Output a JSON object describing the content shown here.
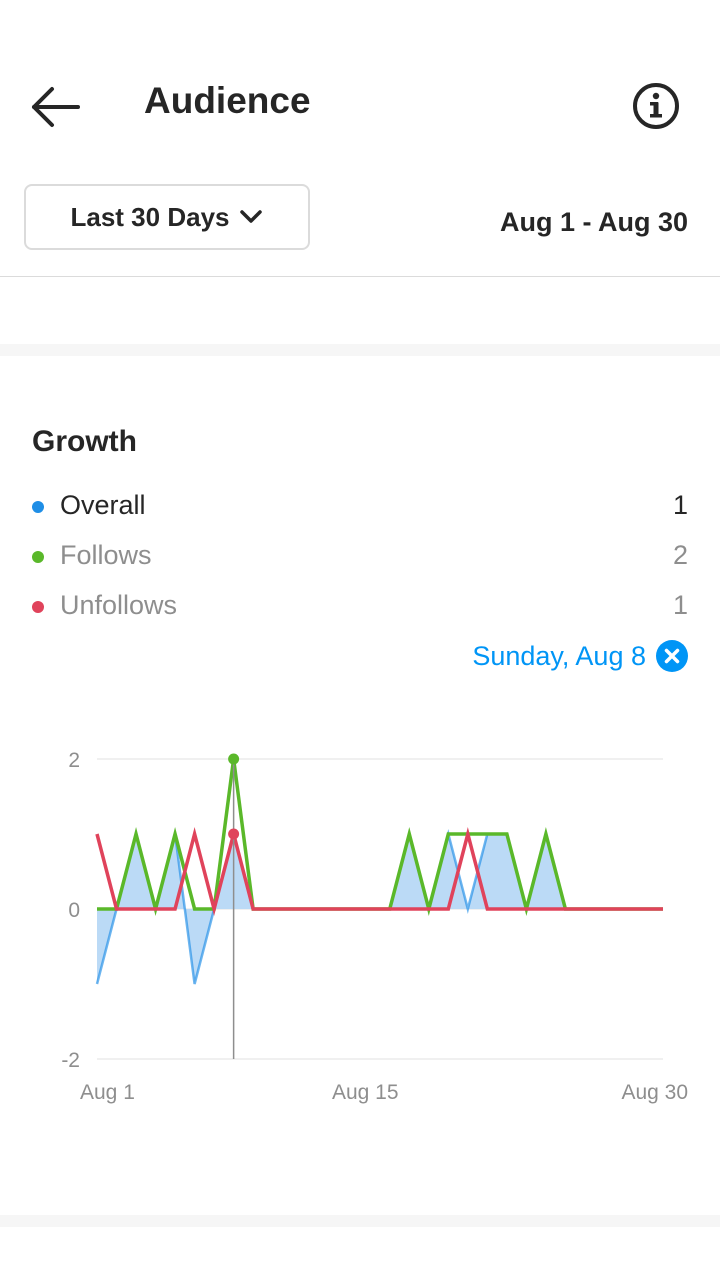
{
  "header": {
    "title": "Audience",
    "back_icon": "back-arrow-icon",
    "info_icon": "info-icon"
  },
  "filter": {
    "range_label": "Last 30 Days",
    "dropdown_icon": "chevron-down-icon",
    "date_range": "Aug 1 - Aug 30"
  },
  "growth": {
    "title": "Growth",
    "legend": [
      {
        "label": "Overall",
        "value": "1",
        "color": "#1f8ee6"
      },
      {
        "label": "Follows",
        "value": "2",
        "color": "#5ab82a"
      },
      {
        "label": "Unfollows",
        "value": "1",
        "color": "#e0435b"
      }
    ],
    "selected_day": "Sunday, Aug 8",
    "close_icon": "close-circle-icon"
  },
  "colors": {
    "accent": "#0095f6",
    "overall": "#1f8ee6",
    "overall_fill": "#b7d8f5",
    "follows": "#5ab82a",
    "unfollows": "#e0435b",
    "grid": "#e0e0e0",
    "muted_text": "#8e8e8e"
  },
  "chart_data": {
    "type": "line",
    "x": [
      1,
      2,
      3,
      4,
      5,
      6,
      7,
      8,
      9,
      10,
      11,
      12,
      13,
      14,
      15,
      16,
      17,
      18,
      19,
      20,
      21,
      22,
      23,
      24,
      25,
      26,
      27,
      28,
      29,
      30
    ],
    "xticks": [
      {
        "x": 1,
        "label": "Aug 1"
      },
      {
        "x": 15,
        "label": "Aug 15"
      },
      {
        "x": 30,
        "label": "Aug 30"
      }
    ],
    "yticks": [
      {
        "y": 2,
        "label": "2"
      },
      {
        "y": 0,
        "label": "0"
      },
      {
        "y": -2,
        "label": "-2"
      }
    ],
    "ylim": [
      -2,
      2
    ],
    "grid": true,
    "selected_x": 8,
    "series": [
      {
        "name": "Overall",
        "values": [
          -1,
          0,
          1,
          0,
          1,
          -1,
          0,
          1,
          0,
          0,
          0,
          0,
          0,
          0,
          0,
          0,
          1,
          0,
          1,
          0,
          1,
          1,
          0,
          1,
          0,
          0,
          0,
          0,
          0,
          0
        ]
      },
      {
        "name": "Follows",
        "values": [
          0,
          0,
          1,
          0,
          1,
          0,
          0,
          2,
          0,
          0,
          0,
          0,
          0,
          0,
          0,
          0,
          1,
          0,
          1,
          1,
          1,
          1,
          0,
          1,
          0,
          0,
          0,
          0,
          0,
          0
        ]
      },
      {
        "name": "Unfollows",
        "values": [
          1,
          0,
          0,
          0,
          0,
          1,
          0,
          1,
          0,
          0,
          0,
          0,
          0,
          0,
          0,
          0,
          0,
          0,
          0,
          1,
          0,
          0,
          0,
          0,
          0,
          0,
          0,
          0,
          0,
          0
        ]
      }
    ]
  }
}
